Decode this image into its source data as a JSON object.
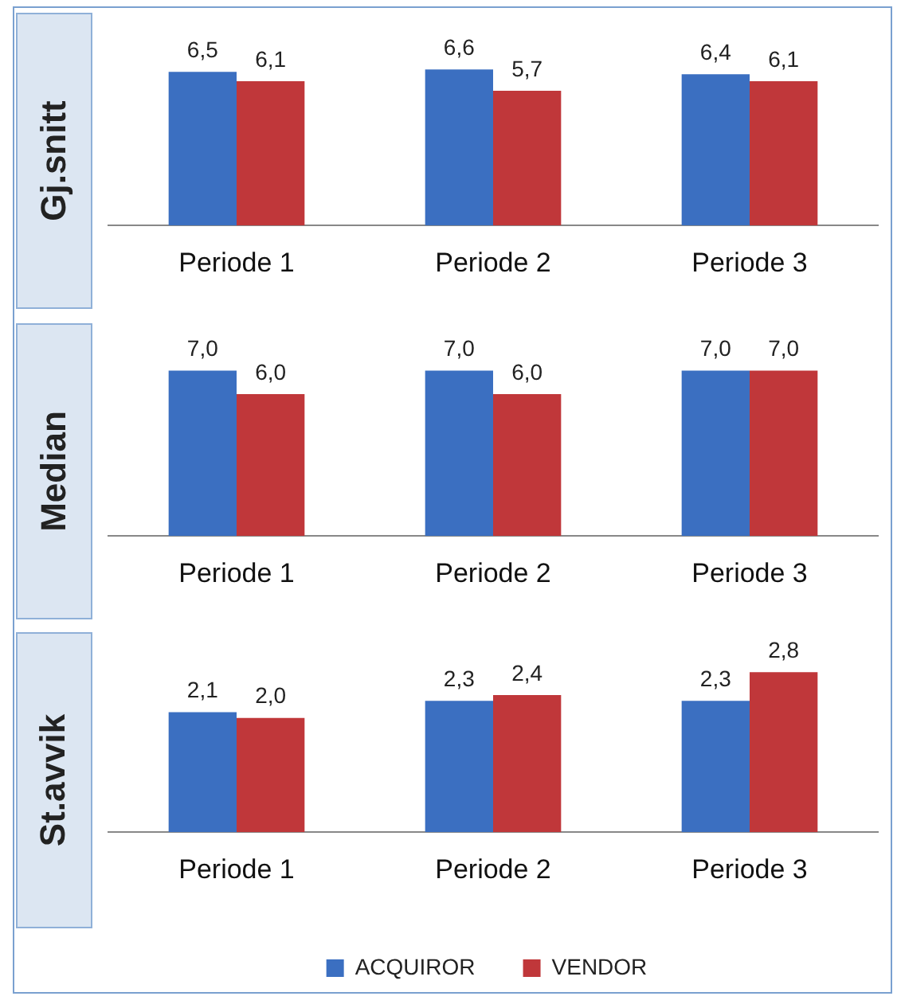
{
  "chart_data": [
    {
      "type": "bar",
      "ylabel": "Gj.snitt",
      "categories": [
        "Periode 1",
        "Periode 2",
        "Periode 3"
      ],
      "tick_labels": "x",
      "grid": false,
      "legend": false,
      "series": [
        {
          "color": "#3b6fc1",
          "values": [
            6.5,
            6.6,
            6.4
          ],
          "value_labels": [
            "6,5",
            "6,6",
            "6,4"
          ]
        },
        {
          "color": "#c0373a",
          "values": [
            6.1,
            5.7,
            6.1
          ],
          "value_labels": [
            "6,1",
            "5,7",
            "6,1"
          ]
        }
      ]
    },
    {
      "type": "bar",
      "ylabel": "Median",
      "categories": [
        "Periode 1",
        "Periode 2",
        "Periode 3"
      ],
      "tick_labels": "x",
      "grid": false,
      "legend": false,
      "series": [
        {
          "color": "#3b6fc1",
          "values": [
            7.0,
            7.0,
            7.0
          ],
          "value_labels": [
            "7,0",
            "7,0",
            "7,0"
          ]
        },
        {
          "color": "#c0373a",
          "values": [
            6.0,
            6.0,
            7.0
          ],
          "value_labels": [
            "6,0",
            "6,0",
            "7,0"
          ]
        }
      ]
    },
    {
      "type": "bar",
      "ylabel": "St.avvik",
      "categories": [
        "Periode 1",
        "Periode 2",
        "Periode 3"
      ],
      "tick_labels": "x",
      "grid": false,
      "legend": "bottom",
      "series": [
        {
          "name": "ACQUIROR",
          "color": "#3b6fc1",
          "values": [
            2.1,
            2.3,
            2.3
          ],
          "value_labels": [
            "2,1",
            "2,3",
            "2,3"
          ]
        },
        {
          "name": "VENDOR",
          "color": "#c0373a",
          "values": [
            2.0,
            2.4,
            2.8
          ],
          "value_labels": [
            "2,0",
            "2,4",
            "2,8"
          ]
        }
      ]
    }
  ]
}
